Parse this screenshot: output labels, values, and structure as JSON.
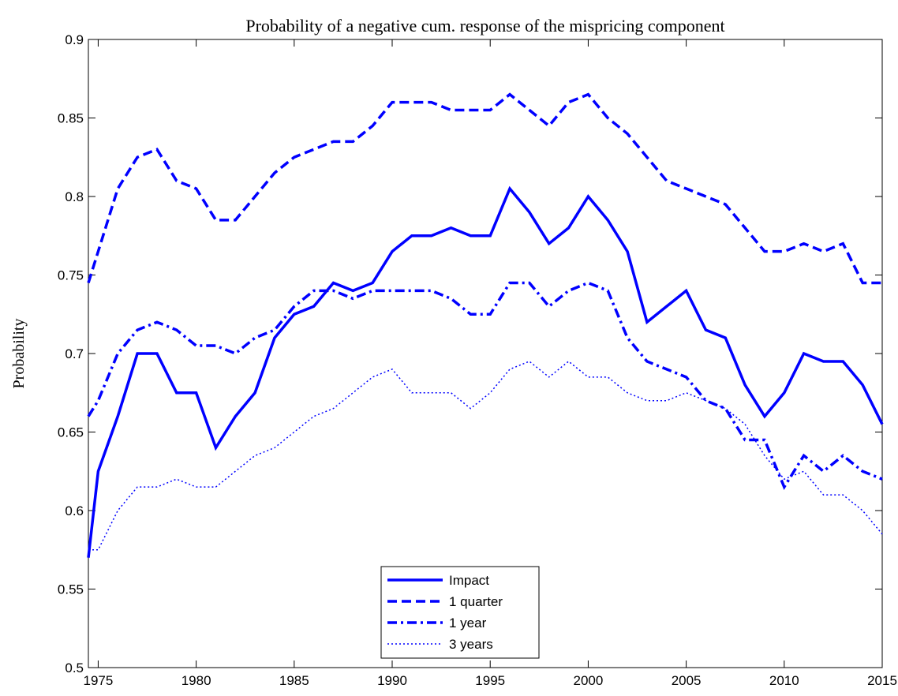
{
  "chart_data": {
    "type": "line",
    "title": "Probability of a negative cum. response of the mispricing component",
    "y_label": "Probability",
    "x": [
      1974.5,
      1975,
      1976,
      1977,
      1978,
      1979,
      1980,
      1981,
      1982,
      1983,
      1984,
      1985,
      1986,
      1987,
      1988,
      1989,
      1990,
      1991,
      1992,
      1993,
      1994,
      1995,
      1996,
      1997,
      1998,
      1999,
      2000,
      2001,
      2002,
      2003,
      2004,
      2005,
      2006,
      2007,
      2008,
      2009,
      2010,
      2011,
      2012,
      2013,
      2014,
      2015
    ],
    "series": [
      {
        "name": "Impact",
        "color": "#0000ff",
        "style": "solid",
        "values": [
          0.57,
          0.625,
          0.66,
          0.7,
          0.7,
          0.675,
          0.675,
          0.64,
          0.66,
          0.675,
          0.71,
          0.725,
          0.73,
          0.745,
          0.74,
          0.745,
          0.765,
          0.775,
          0.775,
          0.78,
          0.775,
          0.775,
          0.805,
          0.79,
          0.77,
          0.78,
          0.8,
          0.785,
          0.765,
          0.72,
          0.73,
          0.74,
          0.715,
          0.71,
          0.68,
          0.66,
          0.675,
          0.7,
          0.695,
          0.695,
          0.68,
          0.655
        ]
      },
      {
        "name": "1 quarter",
        "color": "#0000ff",
        "style": "dashed",
        "values": [
          0.745,
          0.765,
          0.805,
          0.825,
          0.83,
          0.81,
          0.805,
          0.785,
          0.785,
          0.8,
          0.815,
          0.825,
          0.83,
          0.835,
          0.835,
          0.845,
          0.86,
          0.86,
          0.86,
          0.855,
          0.855,
          0.855,
          0.865,
          0.855,
          0.845,
          0.86,
          0.865,
          0.85,
          0.84,
          0.825,
          0.81,
          0.805,
          0.8,
          0.795,
          0.78,
          0.765,
          0.765,
          0.77,
          0.765,
          0.77,
          0.745,
          0.745
        ]
      },
      {
        "name": "1 year",
        "color": "#0000ff",
        "style": "dashdot",
        "values": [
          0.66,
          0.67,
          0.7,
          0.715,
          0.72,
          0.715,
          0.705,
          0.705,
          0.7,
          0.71,
          0.715,
          0.73,
          0.74,
          0.74,
          0.735,
          0.74,
          0.74,
          0.74,
          0.74,
          0.735,
          0.725,
          0.725,
          0.745,
          0.745,
          0.73,
          0.74,
          0.745,
          0.74,
          0.71,
          0.695,
          0.69,
          0.685,
          0.67,
          0.665,
          0.645,
          0.645,
          0.615,
          0.635,
          0.625,
          0.635,
          0.625,
          0.62
        ]
      },
      {
        "name": "3 years",
        "color": "#0000ff",
        "style": "dotted",
        "values": [
          0.575,
          0.575,
          0.6,
          0.615,
          0.615,
          0.62,
          0.615,
          0.615,
          0.625,
          0.635,
          0.64,
          0.65,
          0.66,
          0.665,
          0.675,
          0.685,
          0.69,
          0.675,
          0.675,
          0.675,
          0.665,
          0.675,
          0.69,
          0.695,
          0.685,
          0.695,
          0.685,
          0.685,
          0.675,
          0.67,
          0.67,
          0.675,
          0.67,
          0.665,
          0.655,
          0.635,
          0.62,
          0.625,
          0.61,
          0.61,
          0.6,
          0.585
        ]
      }
    ],
    "xlim": [
      1974.5,
      2015
    ],
    "xticks": [
      1975,
      1980,
      1985,
      1990,
      1995,
      2000,
      2005,
      2010,
      2015
    ],
    "ylim": [
      0.5,
      0.9
    ],
    "yticks": [
      0.5,
      0.55,
      0.6,
      0.65,
      0.7,
      0.75,
      0.8,
      0.85,
      0.9
    ],
    "grid": false,
    "legend": "lower center"
  }
}
